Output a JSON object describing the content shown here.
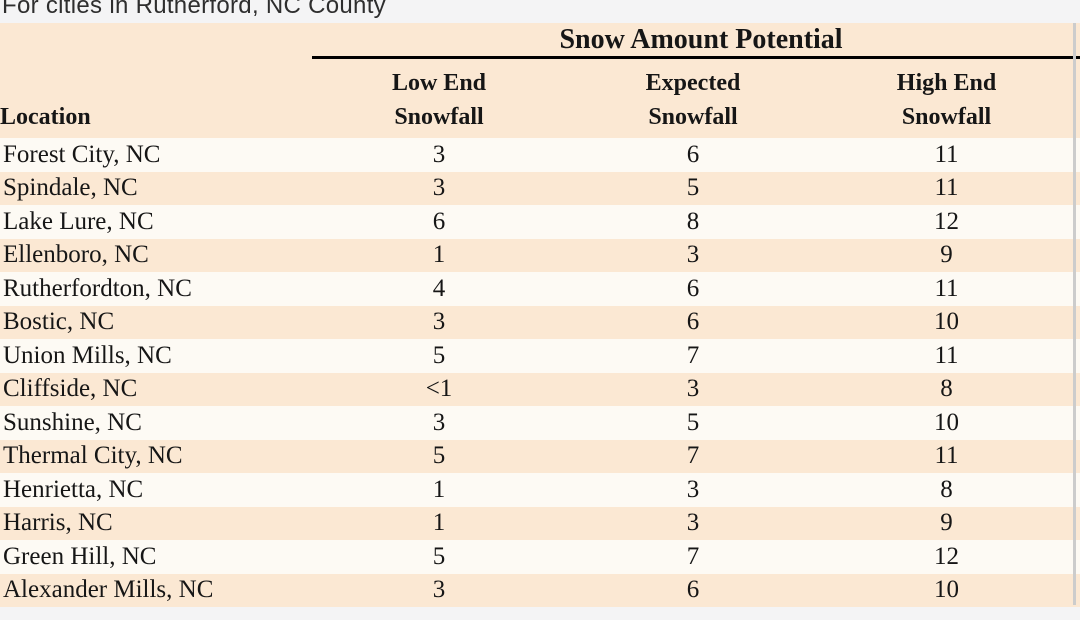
{
  "page": {
    "title": "For cities in Rutherford, NC County"
  },
  "table": {
    "group_header": "Snow Amount Potential",
    "location_header": "Location",
    "columns": [
      {
        "line1": "Low End",
        "line2": "Snowfall"
      },
      {
        "line1": "Expected",
        "line2": "Snowfall"
      },
      {
        "line1": "High End",
        "line2": "Snowfall"
      }
    ]
  },
  "colors": {
    "row_stripe_light": "#fdfaf4",
    "row_stripe_peach": "#fbe8d3",
    "header_background": "#fbe8d3",
    "rule_black": "#000000",
    "page_background": "#f4f4f5",
    "divider_gray": "#cccccc",
    "text": "#161616"
  },
  "chart_data": {
    "type": "table",
    "title": "Snow Amount Potential",
    "subtitle": "For cities in Rutherford, NC County",
    "columns": [
      "Location",
      "Low End Snowfall",
      "Expected Snowfall",
      "High End Snowfall"
    ],
    "rows": [
      [
        "Forest City, NC",
        "3",
        "6",
        "11"
      ],
      [
        "Spindale, NC",
        "3",
        "5",
        "11"
      ],
      [
        "Lake Lure, NC",
        "6",
        "8",
        "12"
      ],
      [
        "Ellenboro, NC",
        "1",
        "3",
        "9"
      ],
      [
        "Rutherfordton, NC",
        "4",
        "6",
        "11"
      ],
      [
        "Bostic, NC",
        "3",
        "6",
        "10"
      ],
      [
        "Union Mills, NC",
        "5",
        "7",
        "11"
      ],
      [
        "Cliffside, NC",
        "<1",
        "3",
        "8"
      ],
      [
        "Sunshine, NC",
        "3",
        "5",
        "10"
      ],
      [
        "Thermal City, NC",
        "5",
        "7",
        "11"
      ],
      [
        "Henrietta, NC",
        "1",
        "3",
        "8"
      ],
      [
        "Harris, NC",
        "1",
        "3",
        "9"
      ],
      [
        "Green Hill, NC",
        "5",
        "7",
        "12"
      ],
      [
        "Alexander Mills, NC",
        "3",
        "6",
        "10"
      ]
    ]
  }
}
